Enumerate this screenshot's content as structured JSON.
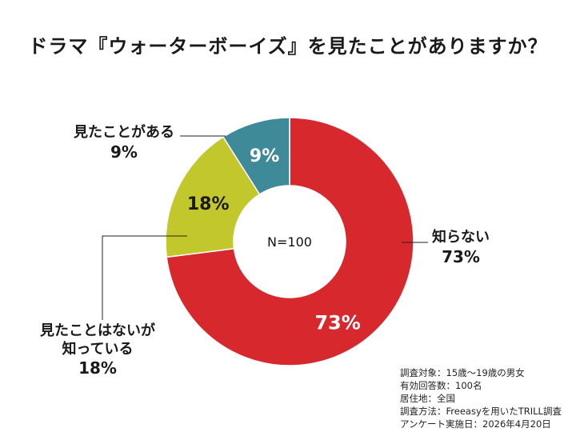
{
  "title": "ドラマ『ウォーターボーイズ』を見たことがありますか？",
  "center_label": "N=100",
  "chart_data": {
    "type": "pie",
    "title": "ドラマ『ウォーターボーイズ』を見たことがありますか？",
    "categories": [
      "知らない",
      "見たことはないが知っている",
      "見たことがある"
    ],
    "values": [
      73,
      18,
      9
    ],
    "unit": "%",
    "colors": [
      "#d7282e",
      "#c2c72c",
      "#3f8a98"
    ],
    "slice_labels": [
      "73%",
      "18%",
      "9%"
    ],
    "center_text": "N=100"
  },
  "labels": {
    "unknown": {
      "name": "知らない",
      "pct": "73%"
    },
    "known": {
      "name_line1": "見たことはないが",
      "name_line2": "知っている",
      "pct": "18%"
    },
    "seen": {
      "name": "見たことがある",
      "pct": "9%"
    }
  },
  "notes": [
    "調査対象：15歳〜19歳の男女",
    "有効回答数：100名",
    "居住地：全国",
    "調査方法：Freeasyを用いたTRILL調査",
    "アンケート実施日：2026年4月20日"
  ]
}
